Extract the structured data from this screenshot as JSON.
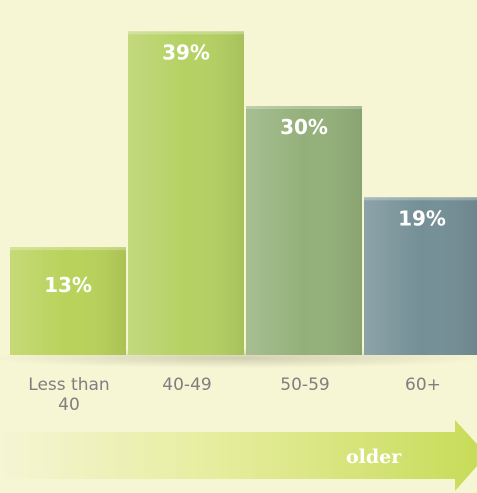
{
  "chart_data": {
    "type": "bar",
    "categories": [
      "Less than 40",
      "40-49",
      "50-59",
      "60+"
    ],
    "category_lines": [
      [
        "Less than",
        "40"
      ],
      [
        "40-49"
      ],
      [
        "50-59"
      ],
      [
        "60+"
      ]
    ],
    "values": [
      13,
      39,
      30,
      19
    ],
    "value_labels": [
      "13%",
      "39%",
      "30%",
      "19%"
    ],
    "bar_colors": [
      "#b9d25a",
      "#b5d163",
      "#94b07a",
      "#748f96"
    ],
    "ylim": [
      0,
      40
    ],
    "grid": false,
    "legend": "none"
  },
  "arrow": {
    "label": "older",
    "colors": {
      "start": "#f6f5d4",
      "end": "#c8dc5a"
    }
  },
  "colors": {
    "background": "#f6f5d4",
    "value_label": "#ffffff",
    "category_label": "#7f7f7f"
  }
}
